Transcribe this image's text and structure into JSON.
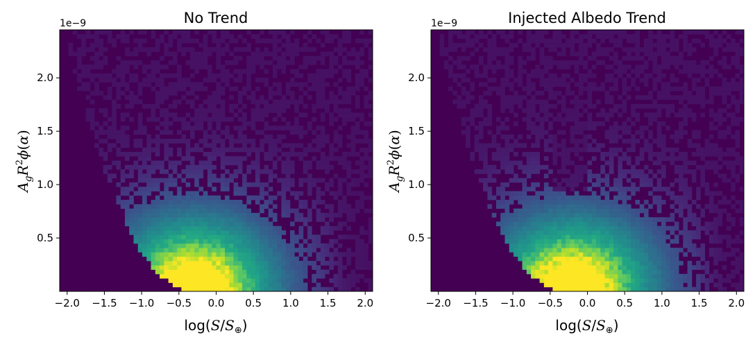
{
  "chart_data": [
    {
      "type": "heatmap",
      "title": "No Trend",
      "xlabel": "log(S/S⊕)",
      "ylabel": "AgR²φ(α)",
      "y_offset_label": "1e−9",
      "xlim": [
        -2.1,
        2.1
      ],
      "ylim": [
        0.0,
        2.45
      ],
      "x_ticks": [
        -2.0,
        -1.5,
        -1.0,
        -0.5,
        0.0,
        0.5,
        1.0,
        1.5,
        2.0
      ],
      "x_tick_labels": [
        "−2.0",
        "−1.5",
        "−1.0",
        "−0.5",
        "0.0",
        "0.5",
        "1.0",
        "1.5",
        "2.0"
      ],
      "y_ticks": [
        0.5,
        1.0,
        1.5,
        2.0
      ],
      "y_tick_labels": [
        "0.5",
        "1.0",
        "1.5",
        "2.0"
      ],
      "colormap": "viridis",
      "background_color": "#440154",
      "density_model": {
        "description": "2D histogram of planet counts; density peaks near x = -0.3, y = 0.05 and fills the region bounded by the lower-left edge curve",
        "peak": {
          "x": -0.3,
          "y": 0.05
        },
        "notch": null
      }
    },
    {
      "type": "heatmap",
      "title": "Injected Albedo Trend",
      "xlabel": "log(S/S⊕)",
      "ylabel": "AgR²φ(α)",
      "y_offset_label": "1e−9",
      "xlim": [
        -2.1,
        2.1
      ],
      "ylim": [
        0.0,
        2.45
      ],
      "x_ticks": [
        -2.0,
        -1.5,
        -1.0,
        -0.5,
        0.0,
        0.5,
        1.0,
        1.5,
        2.0
      ],
      "x_tick_labels": [
        "−2.0",
        "−1.5",
        "−1.0",
        "−0.5",
        "0.0",
        "0.5",
        "1.0",
        "1.5",
        "2.0"
      ],
      "y_ticks": [
        0.5,
        1.0,
        1.5,
        2.0
      ],
      "y_tick_labels": [
        "0.5",
        "1.0",
        "1.5",
        "2.0"
      ],
      "colormap": "viridis",
      "background_color": "#440154",
      "density_model": {
        "description": "Same distribution with a suppressed notch between x = -0.45 and x = 0.0 above y ≈ 1.0, creating a V shape",
        "peak": {
          "x": -0.2,
          "y": 0.05
        },
        "notch": {
          "x_min": -0.45,
          "x_max": 0.0,
          "y_floor": 0.95
        }
      }
    }
  ]
}
